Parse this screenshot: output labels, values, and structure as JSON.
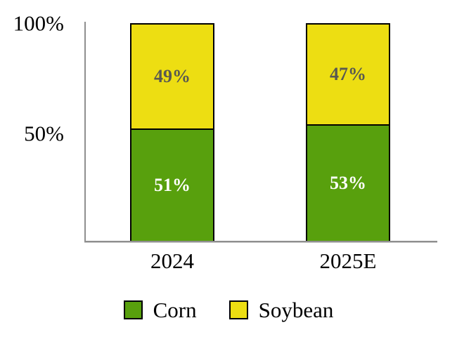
{
  "colors": {
    "corn": "#58A00D",
    "soybean": "#EDDE12",
    "bar_border": "#000000",
    "axis": "#8F8F8F",
    "label_on_yellow": "#595951",
    "label_on_green": "#FFFFFF"
  },
  "chart_data": {
    "type": "bar",
    "stacked": true,
    "percent_stacked": true,
    "categories": [
      "2024",
      "2025E"
    ],
    "series": [
      {
        "name": "Corn",
        "color": "#58A00D",
        "values": [
          51,
          53
        ]
      },
      {
        "name": "Soybean",
        "color": "#EDDE12",
        "values": [
          49,
          47
        ]
      }
    ],
    "value_labels": {
      "corn": [
        "51%",
        "53%"
      ],
      "soybean": [
        "49%",
        "47%"
      ]
    },
    "title": "",
    "xlabel": "",
    "ylabel": "",
    "ylim": [
      0,
      100
    ],
    "y_ticks": [
      {
        "label": "100%",
        "value": 100
      },
      {
        "label": "50%",
        "value": 50
      }
    ],
    "grid": false,
    "legend_position": "bottom"
  },
  "legend": {
    "items": [
      {
        "label": "Corn",
        "color_key": "corn"
      },
      {
        "label": "Soybean",
        "color_key": "soybean"
      }
    ]
  }
}
